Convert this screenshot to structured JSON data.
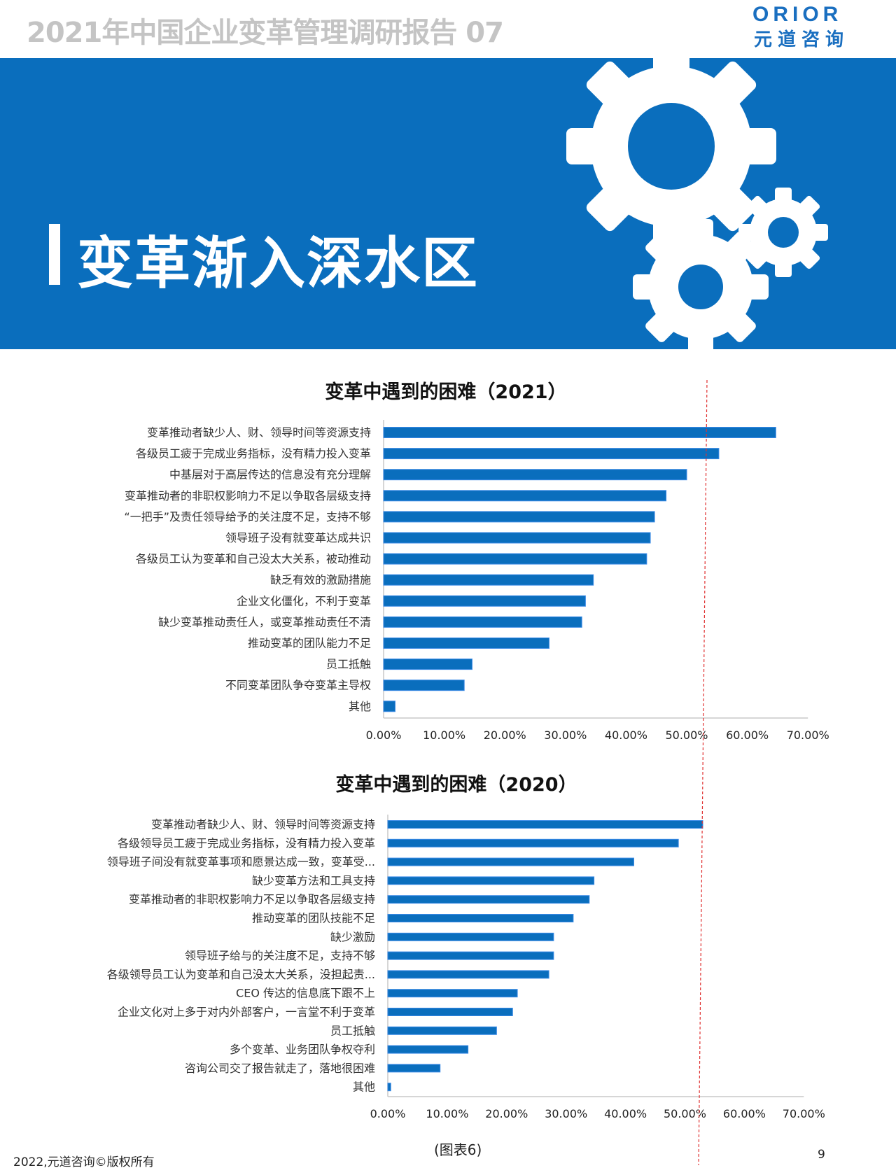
{
  "header": {
    "doc_title": "2021年中国企业变革管理调研报告 07",
    "logo_en": "ORIOR",
    "logo_cn": "元道咨询"
  },
  "banner": {
    "title": "变革渐入深水区",
    "background": "#0a6ebd",
    "decoration": "gears-icon"
  },
  "chart_data": [
    {
      "type": "bar",
      "orientation": "horizontal",
      "title": "变革中遇到的困难（2021）",
      "categories": [
        "变革推动者缺少人、财、领导时间等资源支持",
        "各级员工疲于完成业务指标，没有精力投入变革",
        "中基层对于高层传达的信息没有充分理解",
        "变革推动者的非职权影响力不足以争取各层级支持",
        "“一把手”及责任领导给予的关注度不足，支持不够",
        "领导班子没有就变革达成共识",
        "各级员工认为变革和自己没太大关系，被动推动",
        "缺乏有效的激励措施",
        "企业文化僵化，不利于变革",
        "缺少变革推动责任人，或变革推动责任不清",
        "推动变革的团队能力不足",
        "员工抵触",
        "不同变革团队争夺变革主导权",
        "其他"
      ],
      "values": [
        64.7,
        55.3,
        50.0,
        46.6,
        44.7,
        44.0,
        43.4,
        34.6,
        33.3,
        32.7,
        27.3,
        14.6,
        13.3,
        1.9
      ],
      "xlim": [
        0,
        70
      ],
      "xticks": [
        "0.00%",
        "10.00%",
        "20.00%",
        "30.00%",
        "40.00%",
        "50.00%",
        "60.00%",
        "70.00%"
      ],
      "bar_color": "#0a6ebd",
      "grid": false
    },
    {
      "type": "bar",
      "orientation": "horizontal",
      "title": "变革中遇到的困难（2020）",
      "categories": [
        "变革推动者缺少人、财、领导时间等资源支持",
        "各级领导员工疲于完成业务指标，没有精力投入变革",
        "领导班子间没有就变革事项和愿景达成一致，变革受...",
        "缺少变革方法和工具支持",
        "变革推动者的非职权影响力不足以争取各层级支持",
        "推动变革的团队技能不足",
        "缺少激励",
        "领导班子给与的关注度不足，支持不够",
        "各级领导员工认为变革和自己没太大关系，没担起责...",
        "CEO 传达的信息底下跟不上",
        "企业文化对上多于对内外部客户，一言堂不利于变革",
        "员工抵触",
        "多个变革、业务团队争权夺利",
        "咨询公司交了报告就走了，落地很困难",
        "其他"
      ],
      "values": [
        53.0,
        48.9,
        41.4,
        34.7,
        33.9,
        31.2,
        27.9,
        27.9,
        27.1,
        21.8,
        21.0,
        18.3,
        13.5,
        8.8,
        0.5
      ],
      "xlim": [
        0,
        70
      ],
      "xticks": [
        "0.00%",
        "10.00%",
        "20.00%",
        "30.00%",
        "40.00%",
        "50.00%",
        "60.00%",
        "70.00%"
      ],
      "bar_color": "#0a6ebd",
      "grid": false
    }
  ],
  "reference_line": {
    "value": 52.5,
    "color": "#e03030",
    "style": "dashed"
  },
  "footer": {
    "copyright": "2022,元道咨询©版权所有",
    "caption": "(图表6)",
    "page_number": "9"
  }
}
